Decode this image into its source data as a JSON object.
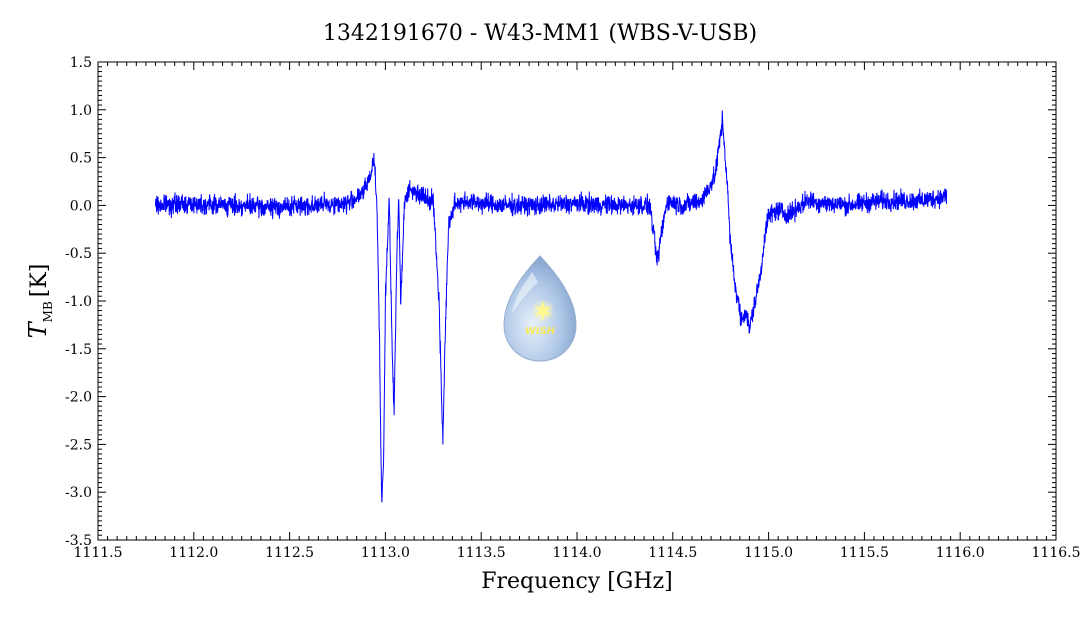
{
  "chart_data": {
    "type": "line",
    "title": "1342191670 - W43-MM1 (WBS-V-USB)",
    "xlabel": "Frequency [GHz]",
    "ylabel_main": "T",
    "ylabel_sub": "MB",
    "ylabel_unit": "[K]",
    "xlim": [
      1111.5,
      1116.5
    ],
    "ylim": [
      -3.5,
      1.5
    ],
    "x_ticks": [
      1111.5,
      1112.0,
      1112.5,
      1113.0,
      1113.5,
      1114.0,
      1114.5,
      1115.0,
      1115.5,
      1116.0,
      1116.5
    ],
    "x_tick_labels": [
      "1111.5",
      "1112.0",
      "1112.5",
      "1113.0",
      "1113.5",
      "1114.0",
      "1114.5",
      "1115.0",
      "1115.5",
      "1116.0",
      "1116.5"
    ],
    "y_ticks": [
      1.5,
      1.0,
      0.5,
      0.0,
      -0.5,
      -1.0,
      -1.5,
      -2.0,
      -2.5,
      -3.0,
      -3.5
    ],
    "y_tick_labels": [
      "1.5",
      "1.0",
      "0.5",
      "0.0",
      "-0.5",
      "-1.0",
      "-1.5",
      "-2.0",
      "-2.5",
      "-3.0",
      "-3.5"
    ],
    "grid": false,
    "legend": "none",
    "series_color": "#0000ff",
    "logo_text": "WISH",
    "series": [
      {
        "x": [
          1111.8,
          1112.0,
          1112.2,
          1112.4,
          1112.6,
          1112.8,
          1112.88,
          1112.92,
          1112.94,
          1112.955,
          1112.97,
          1112.98,
          1112.99,
          1113.0,
          1113.02,
          1113.035,
          1113.045,
          1113.06,
          1113.07,
          1113.08,
          1113.09,
          1113.1,
          1113.12,
          1113.15,
          1113.2,
          1113.25,
          1113.28,
          1113.3,
          1113.31,
          1113.33,
          1113.36,
          1113.4,
          1113.6,
          1113.8,
          1114.0,
          1114.2,
          1114.38,
          1114.42,
          1114.44,
          1114.47,
          1114.55,
          1114.65,
          1114.72,
          1114.76,
          1114.77,
          1114.785,
          1114.8,
          1114.83,
          1114.86,
          1114.88,
          1114.9,
          1114.93,
          1114.96,
          1114.98,
          1115.0,
          1115.05,
          1115.1,
          1115.2,
          1115.4,
          1115.6,
          1115.8,
          1115.93
        ],
        "y": [
          0.0,
          0.02,
          0.0,
          -0.02,
          0.0,
          0.02,
          0.12,
          0.3,
          0.5,
          0.1,
          -1.5,
          -3.1,
          -2.8,
          -1.0,
          0.1,
          -1.5,
          -2.2,
          -0.5,
          0.1,
          -1.0,
          -0.5,
          0.05,
          0.15,
          0.15,
          0.1,
          0.05,
          -1.0,
          -2.5,
          -1.5,
          -0.2,
          0.0,
          0.05,
          0.0,
          0.0,
          0.02,
          0.0,
          0.0,
          -0.6,
          -0.3,
          0.05,
          0.0,
          0.05,
          0.3,
          0.9,
          0.6,
          0.2,
          -0.4,
          -0.9,
          -1.2,
          -1.1,
          -1.3,
          -1.0,
          -0.7,
          -0.3,
          -0.1,
          -0.05,
          -0.1,
          0.05,
          0.0,
          0.05,
          0.05,
          0.1
        ]
      }
    ]
  }
}
